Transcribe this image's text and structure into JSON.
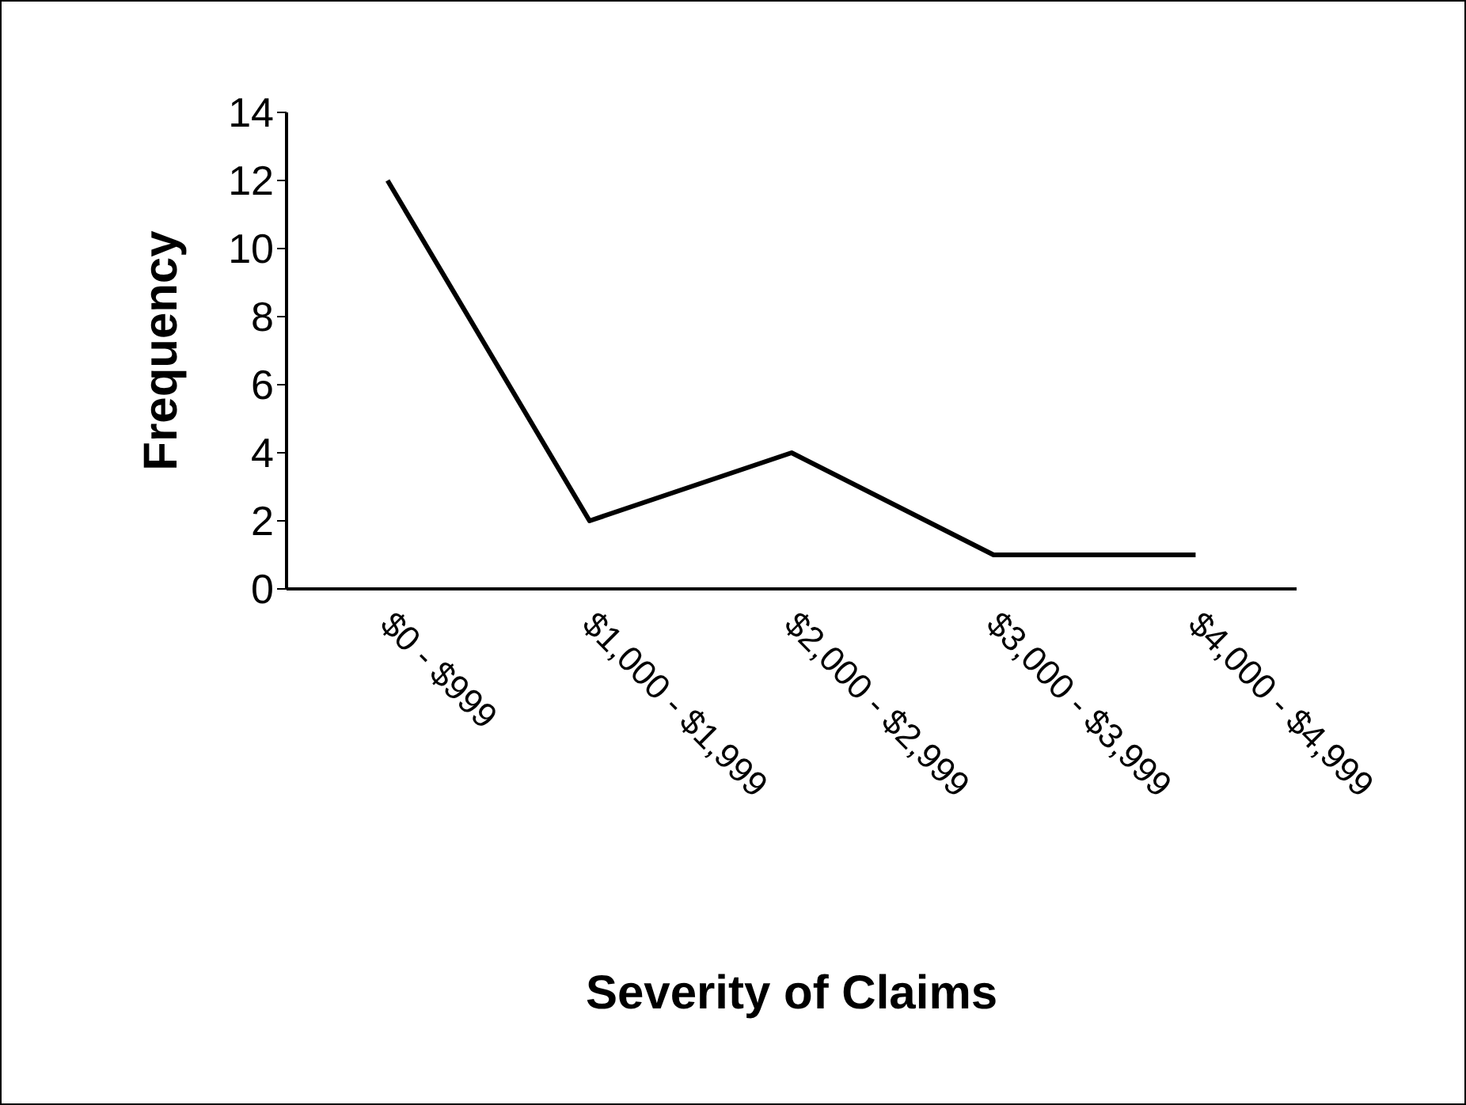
{
  "chart_data": {
    "type": "line",
    "xlabel": "Severity of Claims",
    "ylabel": "Frequency",
    "categories": [
      "$0 - $999",
      "$1,000 - $1,999",
      "$2,000 - $2,999",
      "$3,000 - $3,999",
      "$4,000 - $4,999"
    ],
    "series": [
      {
        "color": "#000000",
        "values": [
          12,
          2,
          4,
          1,
          1
        ]
      }
    ],
    "ylim": [
      0,
      14
    ],
    "yticks": [
      0,
      2,
      4,
      6,
      8,
      10,
      12,
      14
    ],
    "grid": false,
    "legend": false,
    "marker": "none",
    "line_style": "solid"
  }
}
